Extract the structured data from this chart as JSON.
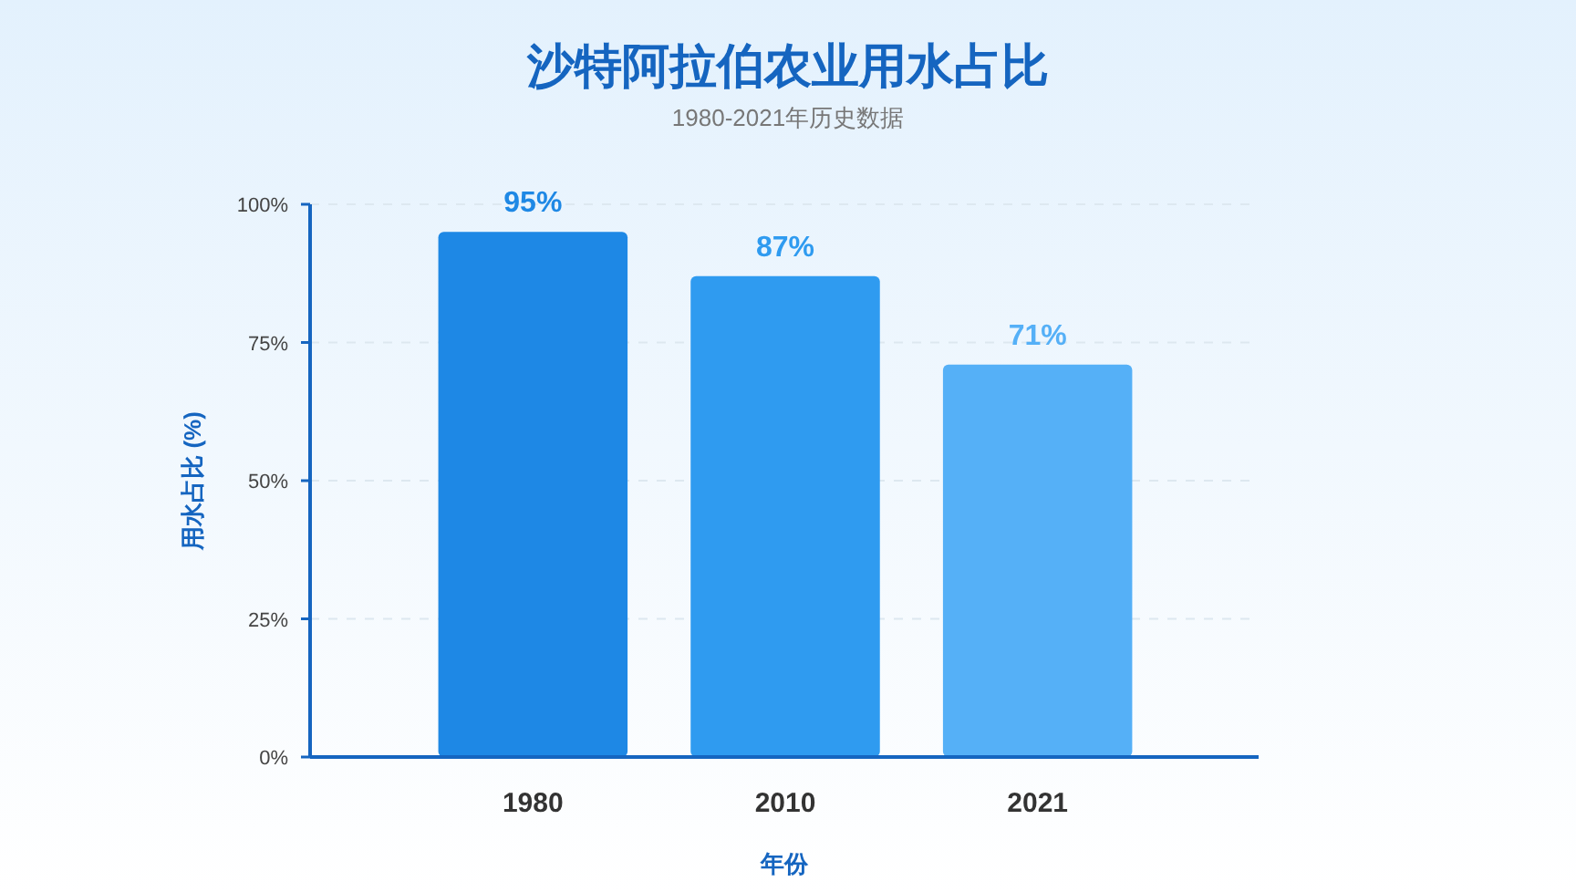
{
  "chart_data": {
    "type": "bar",
    "title": "沙特阿拉伯农业用水占比",
    "subtitle": "1980-2021年历史数据",
    "xlabel": "年份",
    "ylabel": "用水占比 (%)",
    "categories": [
      "1980",
      "2010",
      "2021"
    ],
    "values": [
      95,
      87,
      71
    ],
    "colors": [
      "#1e88e5",
      "#2f9bf0",
      "#55b0f7"
    ],
    "value_labels": [
      "95%",
      "87%",
      "71%"
    ],
    "ylim": [
      0,
      100
    ],
    "yticks": [
      {
        "value": 0,
        "label": "0%"
      },
      {
        "value": 25,
        "label": "25%"
      },
      {
        "value": 50,
        "label": "50%"
      },
      {
        "value": 75,
        "label": "75%"
      },
      {
        "value": 100,
        "label": "100%"
      }
    ],
    "grid": "y"
  }
}
